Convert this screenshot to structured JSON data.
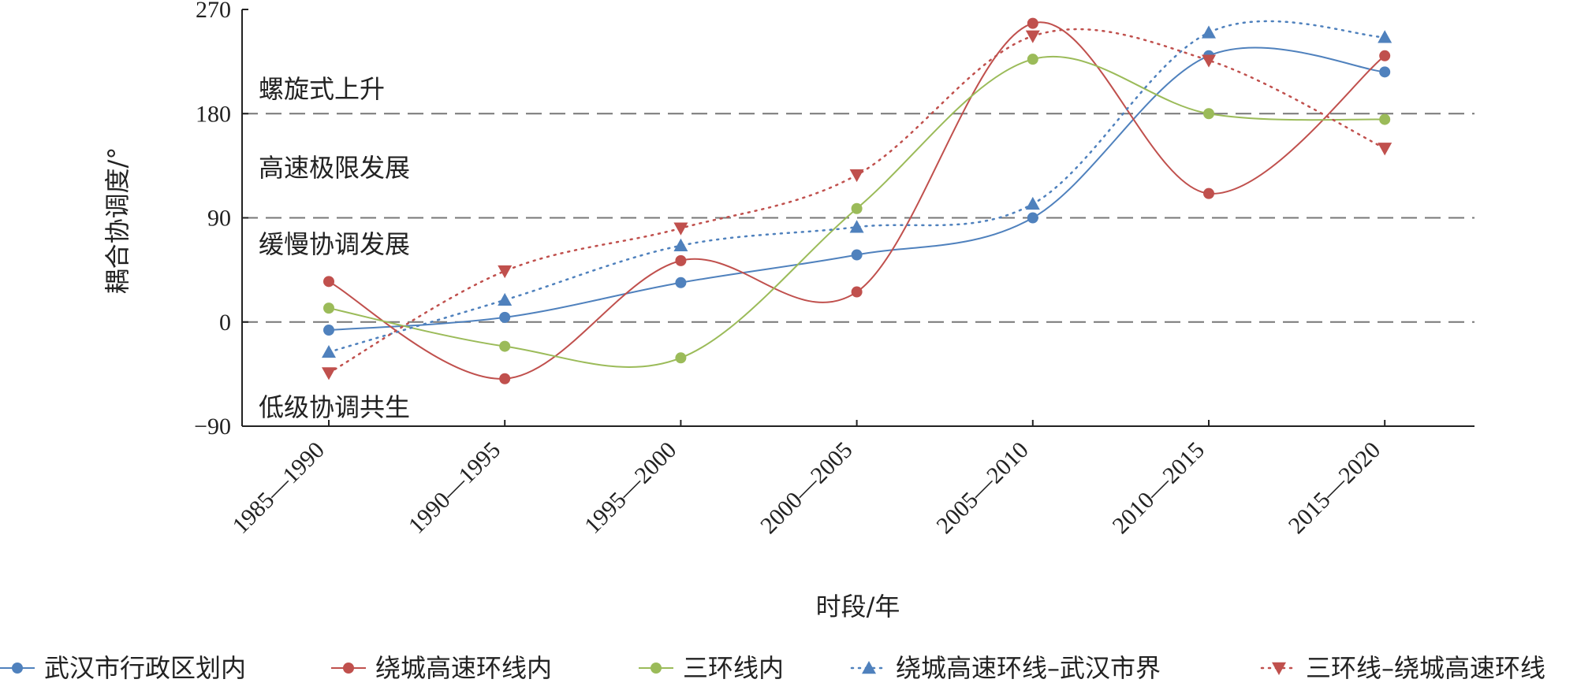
{
  "chart_data": {
    "type": "line",
    "xlabel": "时段/年",
    "ylabel": "耦合协调度/°",
    "ylim": [
      -90,
      270
    ],
    "yticks": [
      "−90",
      "0",
      "90",
      "180",
      "270"
    ],
    "ytick_values": [
      -90,
      0,
      90,
      180,
      270
    ],
    "categories": [
      "1985—1990",
      "1990—1995",
      "1995—2000",
      "2000—2005",
      "2005—2010",
      "2010—2015",
      "2015—2020"
    ],
    "reference_lines": [
      0,
      90,
      180
    ],
    "zones": [
      {
        "label": "螺旋式上升",
        "y": 202
      },
      {
        "label": "高速极限发展",
        "y": 134
      },
      {
        "label": "缓慢协调发展",
        "y": 68
      },
      {
        "label": "低级协调共生",
        "y": -73
      }
    ],
    "legend_position": "bottom",
    "series": [
      {
        "name": "武汉市行政区划内",
        "color": "#4f81bd",
        "marker": "circle",
        "line": "solid",
        "values": [
          -7,
          4,
          34,
          58,
          90,
          230,
          216
        ]
      },
      {
        "name": "绕城高速环线内",
        "color": "#c0504d",
        "marker": "circle",
        "line": "solid",
        "values": [
          35,
          -49,
          53,
          26,
          258,
          111,
          230
        ]
      },
      {
        "name": "三环线内",
        "color": "#9bbb59",
        "marker": "circle",
        "line": "solid",
        "values": [
          12,
          -21,
          -31,
          98,
          227,
          180,
          175
        ]
      },
      {
        "name": "绕城高速环线–武汉市界",
        "color": "#4f81bd",
        "marker": "triangle",
        "line": "dotted",
        "values": [
          -26,
          19,
          66,
          82,
          102,
          250,
          246
        ]
      },
      {
        "name": "三环线–绕城高速环线",
        "color": "#c0504d",
        "marker": "triangle-down",
        "line": "dotted",
        "values": [
          -44,
          44,
          81,
          127,
          247,
          226,
          150
        ]
      }
    ]
  }
}
